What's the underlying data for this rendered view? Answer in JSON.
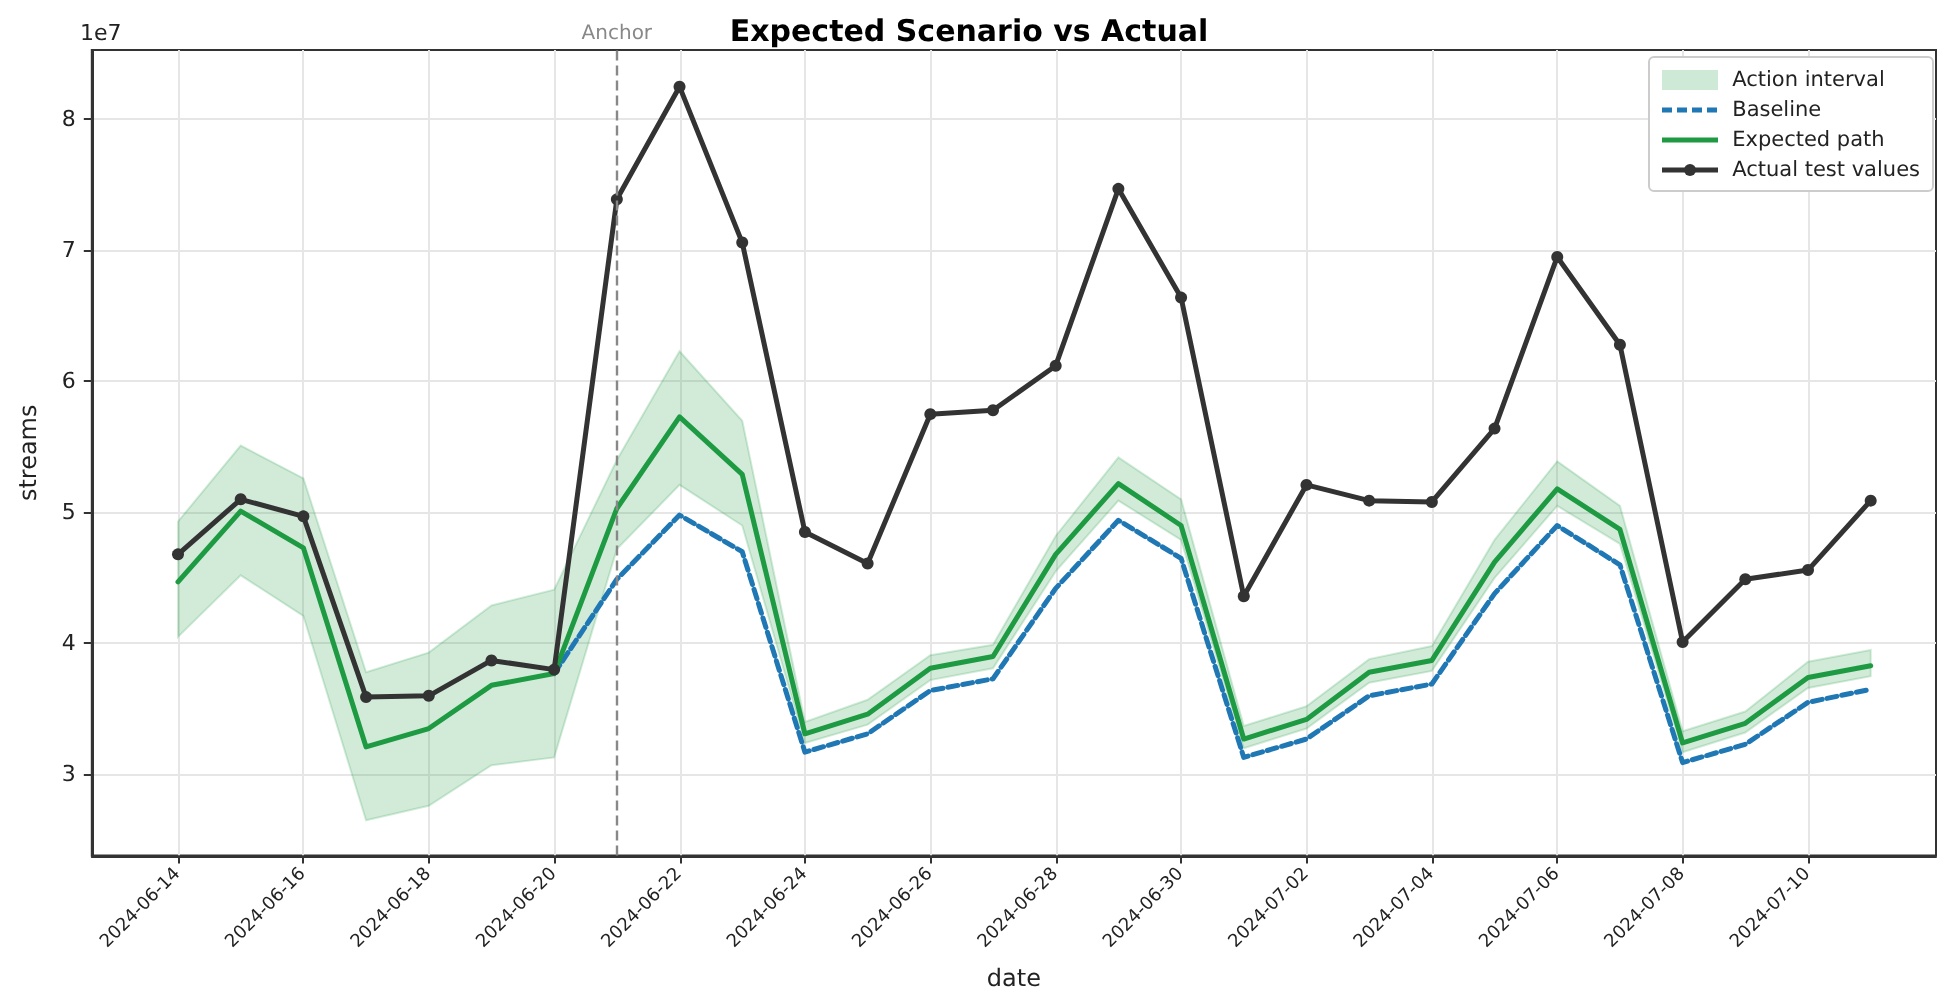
{
  "chart_data": {
    "type": "line",
    "title": "Expected Scenario vs Actual",
    "xlabel": "date",
    "ylabel": "streams",
    "annotations": [
      "1e7",
      "Action interval"
    ],
    "x": [
      "2024-06-14",
      "2024-06-15",
      "2024-06-16",
      "2024-06-17",
      "2024-06-18",
      "2024-06-19",
      "2024-06-20",
      "2024-06-21",
      "2024-06-22",
      "2024-06-23",
      "2024-06-24",
      "2024-06-25",
      "2024-06-26",
      "2024-06-27",
      "2024-06-28",
      "2024-06-29",
      "2024-06-30",
      "2024-07-01",
      "2024-07-02",
      "2024-07-03",
      "2024-07-04",
      "2024-07-05",
      "2024-07-06",
      "2024-07-07",
      "2024-07-08",
      "2024-07-09",
      "2024-07-10",
      "2024-07-11"
    ],
    "series": [
      {
        "name": "Baseline",
        "color": "#1f77b4",
        "line_style": "dashed",
        "marker": "none",
        "values": [
          null,
          null,
          null,
          null,
          null,
          null,
          3.77,
          4.49,
          4.98,
          4.7,
          3.17,
          3.31,
          3.64,
          3.73,
          4.42,
          4.94,
          4.65,
          3.13,
          3.27,
          3.6,
          3.69,
          4.38,
          4.9,
          4.6,
          3.09,
          3.23,
          3.55,
          3.65
        ]
      },
      {
        "name": "Expected path",
        "color": "#1e9a42",
        "line_style": "solid",
        "marker": "none",
        "values": [
          4.47,
          5.01,
          4.73,
          3.21,
          3.35,
          3.68,
          3.77,
          5.03,
          5.73,
          5.29,
          3.31,
          3.46,
          3.81,
          3.9,
          4.68,
          5.22,
          4.9,
          3.27,
          3.42,
          3.78,
          3.87,
          4.62,
          5.18,
          4.87,
          3.24,
          3.39,
          3.74,
          3.83
        ],
        "lower": [
          4.05,
          4.52,
          4.21,
          2.65,
          2.76,
          3.07,
          3.13,
          4.72,
          5.21,
          4.9,
          3.24,
          3.38,
          3.72,
          3.81,
          4.55,
          5.09,
          4.79,
          3.2,
          3.35,
          3.7,
          3.79,
          4.5,
          5.05,
          4.76,
          3.17,
          3.32,
          3.66,
          3.75
        ],
        "upper": [
          4.93,
          5.51,
          5.26,
          3.78,
          3.93,
          4.29,
          4.41,
          5.4,
          6.23,
          5.7,
          3.4,
          3.57,
          3.91,
          3.99,
          4.82,
          5.42,
          5.1,
          3.37,
          3.52,
          3.88,
          3.98,
          4.79,
          5.39,
          5.05,
          3.33,
          3.48,
          3.86,
          3.95
        ]
      },
      {
        "name": "Actual test values",
        "color": "#333333",
        "line_style": "solid",
        "marker": "circle",
        "values": [
          4.68,
          5.1,
          4.97,
          3.59,
          3.6,
          3.87,
          3.8,
          7.39,
          8.25,
          7.06,
          4.85,
          4.61,
          5.75,
          5.78,
          6.12,
          7.47,
          6.64,
          4.36,
          5.21,
          5.09,
          5.08,
          5.64,
          6.95,
          6.28,
          4.01,
          4.49,
          4.56,
          5.09
        ]
      }
    ],
    "xlim": [
      "2024-06-12T15:00",
      "2024-07-12T01:00"
    ],
    "xticks": [
      "2024-06-14",
      "2024-06-16",
      "2024-06-18",
      "2024-06-20",
      "2024-06-22",
      "2024-06-24",
      "2024-06-26",
      "2024-06-28",
      "2024-06-30",
      "2024-07-02",
      "2024-07-04",
      "2024-07-06",
      "2024-07-08",
      "2024-07-10"
    ],
    "ylim": [
      2.38,
      8.53
    ],
    "yticks": [
      3,
      4,
      5,
      6,
      7,
      8
    ],
    "ref_lines": [
      {
        "axis": "x",
        "value": "2024-06-21",
        "label": "Anchor",
        "color": "#888888",
        "line_style": "dashed"
      }
    ],
    "grid": true,
    "legend": "top right"
  }
}
